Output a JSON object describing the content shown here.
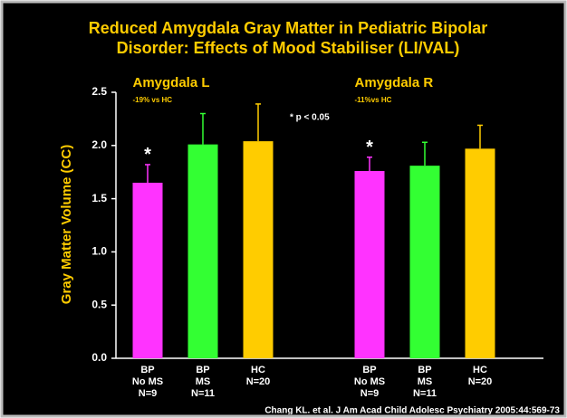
{
  "chart_data": {
    "type": "bar",
    "title": [
      "Reduced Amygdala Gray Matter in Pediatric Bipolar",
      "Disorder: Effects of Mood Stabiliser (LI/VAL)"
    ],
    "y_label": "Gray Matter Volume (CC)",
    "groups": [
      {
        "title": "Amygdala L",
        "subtitle": "-19% vs HC"
      },
      {
        "title": "Amygdala R",
        "subtitle": "-11%vs HC"
      }
    ],
    "note": "* p < 0.05",
    "categories": [
      [
        "BP",
        "No MS",
        "N=9"
      ],
      [
        "BP",
        "MS",
        "N=11"
      ],
      [
        "HC",
        "N=20"
      ],
      [
        "BP",
        "No MS",
        "N=9"
      ],
      [
        "BP",
        "MS",
        "N=11"
      ],
      [
        "HC",
        "N=20"
      ]
    ],
    "values": [
      1.65,
      2.01,
      2.04,
      1.76,
      1.81,
      1.97
    ],
    "errors": [
      0.17,
      0.29,
      0.35,
      0.13,
      0.22,
      0.22
    ],
    "colors": [
      "#ff33ff",
      "#33ff33",
      "#ffcc00",
      "#ff33ff",
      "#33ff33",
      "#ffcc00"
    ],
    "markers": [
      "*",
      null,
      null,
      "*",
      null,
      null
    ],
    "ylim": [
      0,
      2.5
    ],
    "yticks": [
      {
        "value": 0,
        "label": "0.0"
      },
      {
        "value": 0.5,
        "label": "0.5"
      },
      {
        "value": 1,
        "label": "1.0"
      },
      {
        "value": 1.5,
        "label": "1.5"
      },
      {
        "value": 2,
        "label": "2.0"
      },
      {
        "value": 2.5,
        "label": "2.5"
      }
    ],
    "source": "Chang KL. et al. J Am Acad Child Adolesc Psychiatry 2005:44:569-73"
  }
}
